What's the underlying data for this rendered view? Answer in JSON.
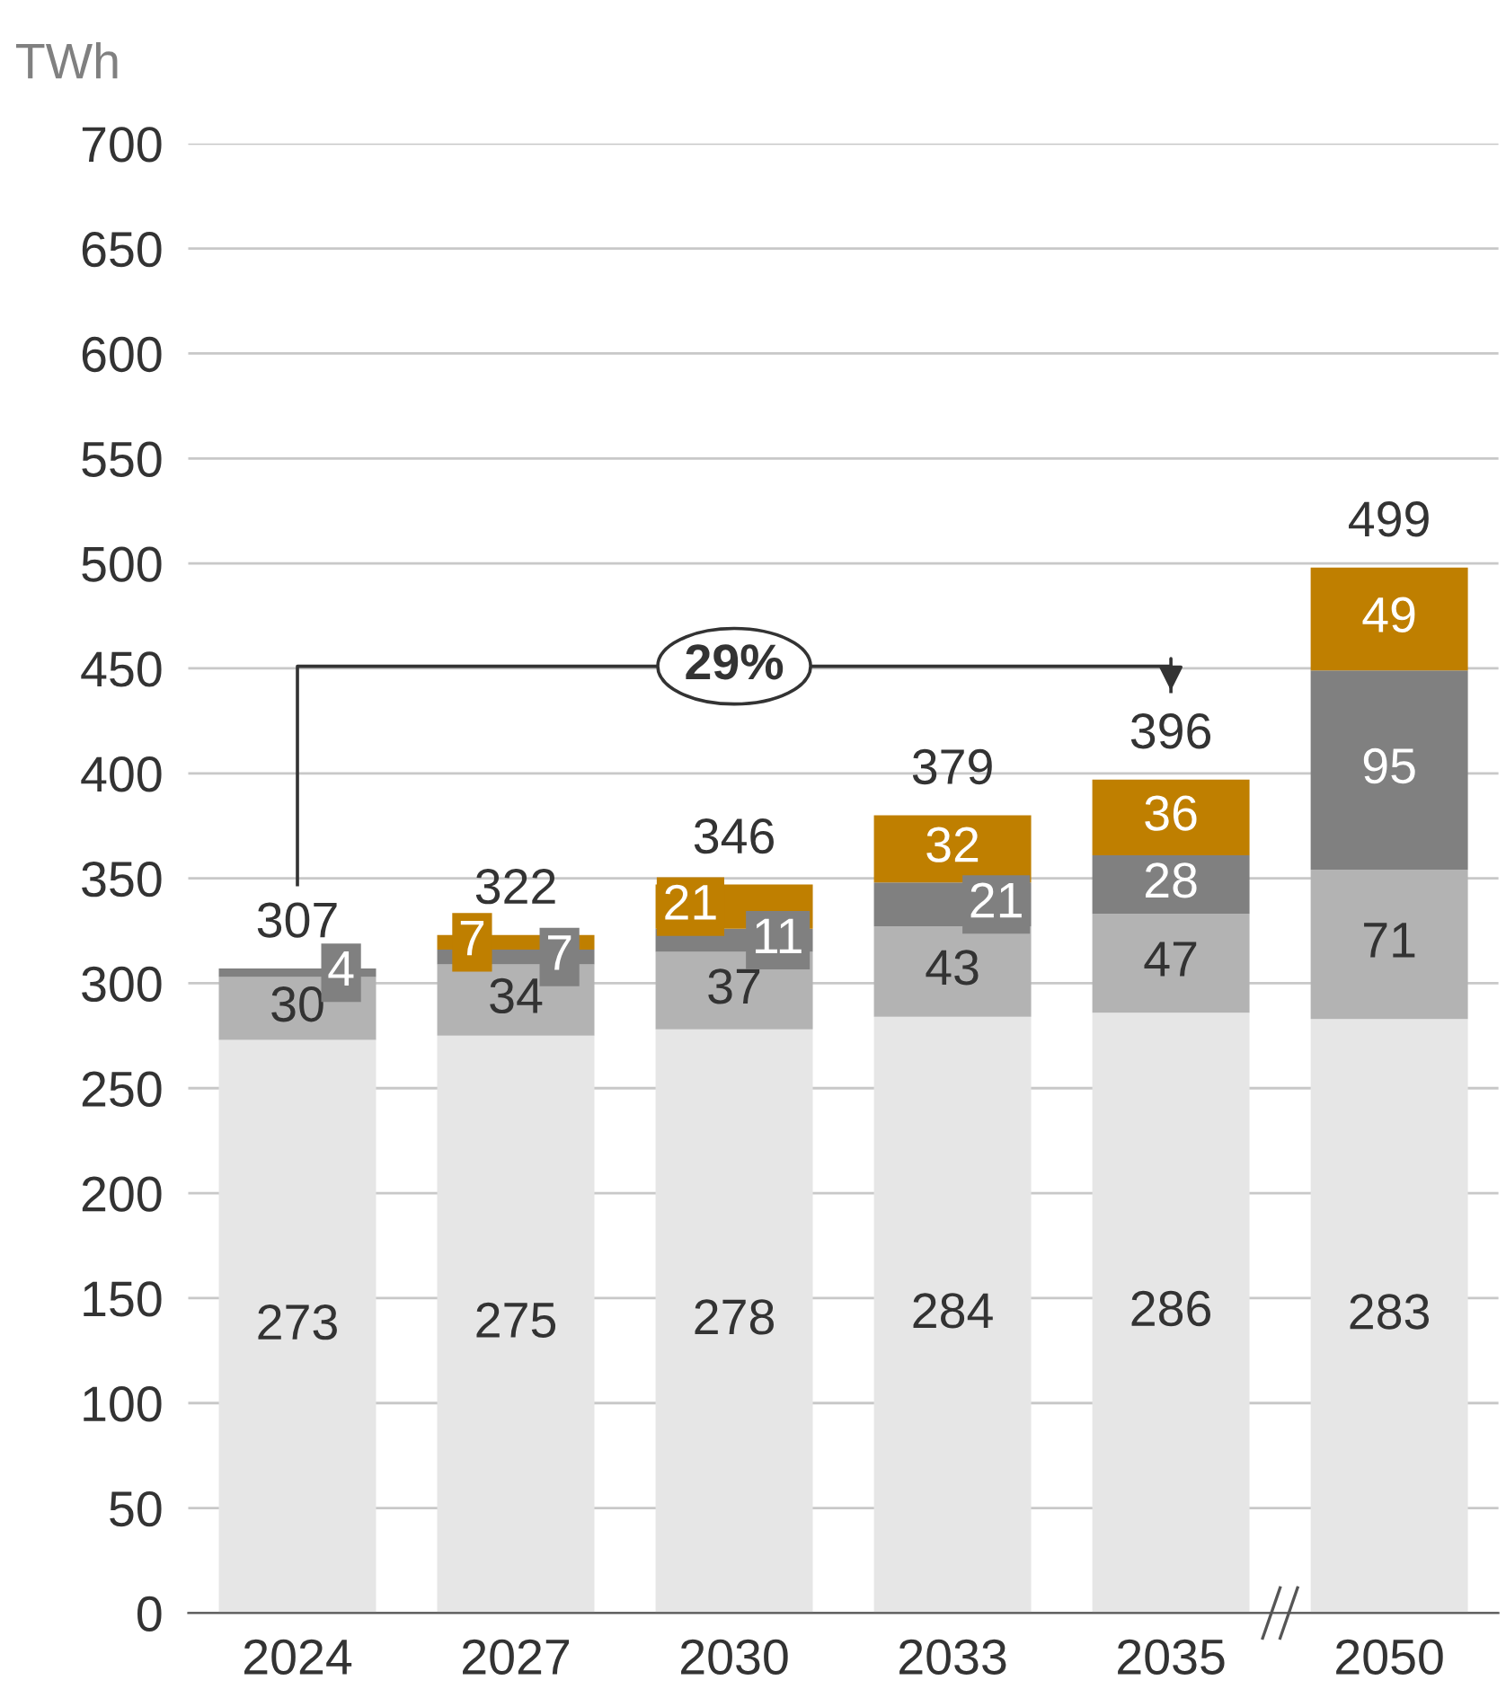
{
  "chart_data": {
    "type": "bar",
    "stacked": true,
    "ylabel": "TWh",
    "categories": [
      "2024",
      "2027",
      "2030",
      "2033",
      "2035",
      "2050"
    ],
    "series": [
      {
        "color": "#e6e6e6",
        "values": [
          273,
          275,
          278,
          284,
          286,
          283
        ]
      },
      {
        "color": "#b3b3b3",
        "values": [
          30,
          34,
          37,
          43,
          47,
          71
        ]
      },
      {
        "color": "#808080",
        "values": [
          4,
          7,
          11,
          21,
          28,
          95
        ]
      },
      {
        "color": "#bf7f00",
        "values": [
          null,
          7,
          21,
          32,
          36,
          49
        ]
      }
    ],
    "totals": [
      "307",
      "322",
      "346",
      "379",
      "396",
      "499"
    ],
    "data_labels": true,
    "annotations": [
      "29%"
    ],
    "ylim": [
      0,
      700
    ],
    "yticks": [
      0,
      50,
      100,
      150,
      200,
      250,
      300,
      350,
      400,
      450,
      500,
      550,
      600,
      650,
      700
    ],
    "grid": "y",
    "legend": false
  }
}
